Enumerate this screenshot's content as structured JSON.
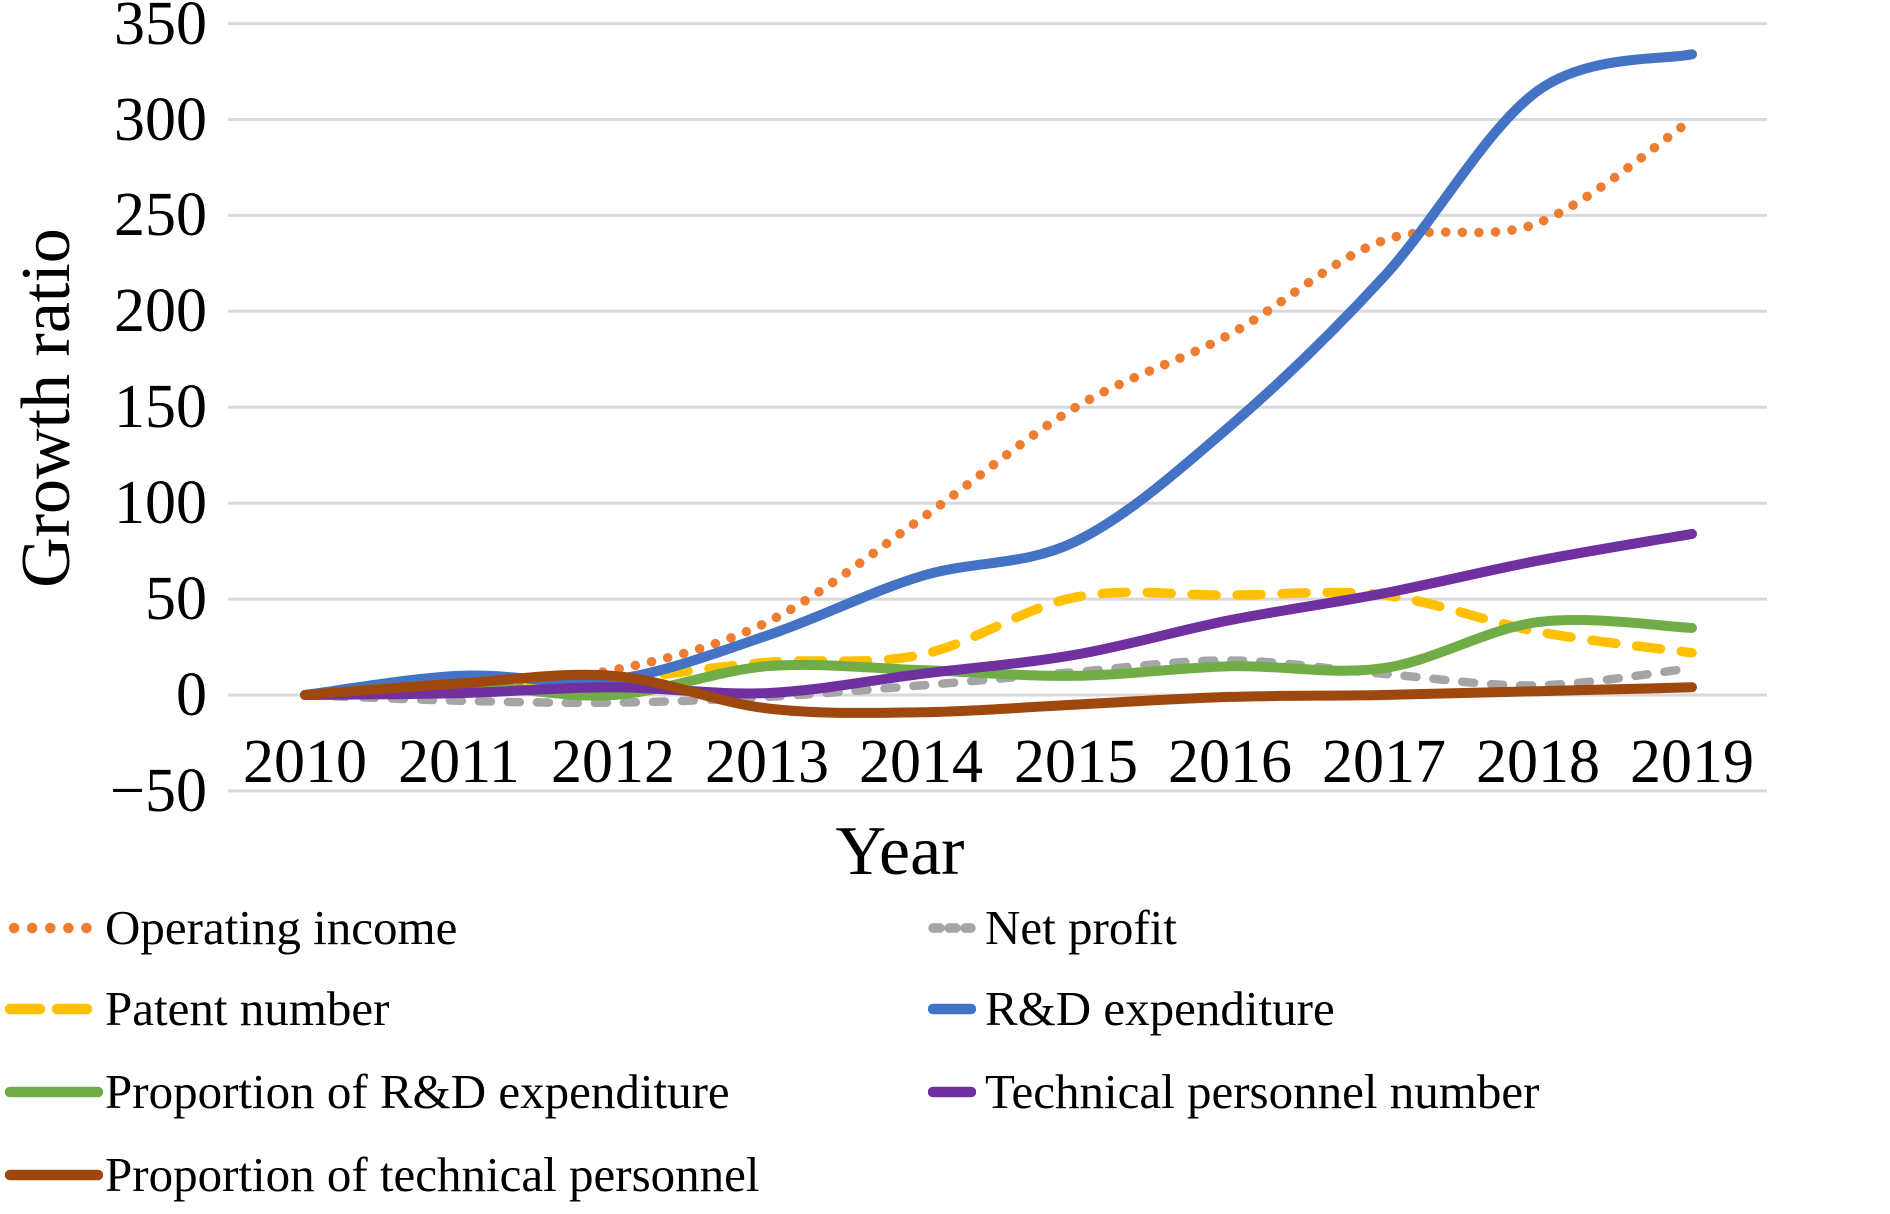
{
  "chart_data": {
    "type": "line",
    "title": "",
    "xlabel": "Year",
    "ylabel": "Growth ratio",
    "categories": [
      "2010",
      "2011",
      "2012",
      "2013",
      "2014",
      "2015",
      "2016",
      "2017",
      "2018",
      "2019"
    ],
    "ylim": [
      -50,
      350
    ],
    "ytick_values": [
      -50,
      0,
      50,
      100,
      150,
      200,
      250,
      300,
      350
    ],
    "ytick_labels": [
      "−50",
      "0",
      "50",
      "100",
      "150",
      "200",
      "250",
      "300",
      "350"
    ],
    "grid": "horizontal",
    "grid_color": "#D9D9D9",
    "legend_position": "bottom",
    "legend_columns": [
      [
        0,
        2,
        4,
        6
      ],
      [
        1,
        3,
        5
      ]
    ],
    "series": [
      {
        "id": "operating-income",
        "name": "Operating income",
        "color": "#ED7D31",
        "style": "dotted",
        "values": [
          0,
          5,
          13,
          38,
          92,
          150,
          188,
          237,
          246,
          300
        ]
      },
      {
        "id": "net-profit",
        "name": "Net profit",
        "color": "#A5A5A5",
        "style": "dashed",
        "values": [
          0,
          -3,
          -4,
          -1,
          5,
          12,
          18,
          11,
          5,
          14
        ]
      },
      {
        "id": "patent-number",
        "name": "Patent number",
        "color": "#FFC000",
        "style": "dashed-long",
        "values": [
          0,
          3,
          8,
          17,
          21,
          51,
          52,
          52,
          33,
          22
        ]
      },
      {
        "id": "rd-expenditure",
        "name": "R&D expenditure",
        "color": "#4472C4",
        "style": "solid",
        "values": [
          0,
          10,
          8,
          31,
          62,
          80,
          140,
          218,
          315,
          334
        ]
      },
      {
        "id": "proportion-rd-expenditure",
        "name": "Proportion of R&D expenditure",
        "color": "#70AD47",
        "style": "solid",
        "values": [
          0,
          5,
          0,
          15,
          13,
          10,
          15,
          14,
          38,
          35
        ]
      },
      {
        "id": "technical-personnel-number",
        "name": "Technical personnel number",
        "color": "#7030A0",
        "style": "solid",
        "values": [
          0,
          1,
          4,
          1,
          11,
          21,
          39,
          53,
          70,
          84
        ]
      },
      {
        "id": "proportion-technical-personnel",
        "name": "Proportion of technical personnel",
        "color": "#9E480E",
        "style": "solid",
        "values": [
          0,
          6,
          10,
          -7,
          -9,
          -5,
          -1,
          0,
          2,
          4
        ]
      }
    ]
  }
}
